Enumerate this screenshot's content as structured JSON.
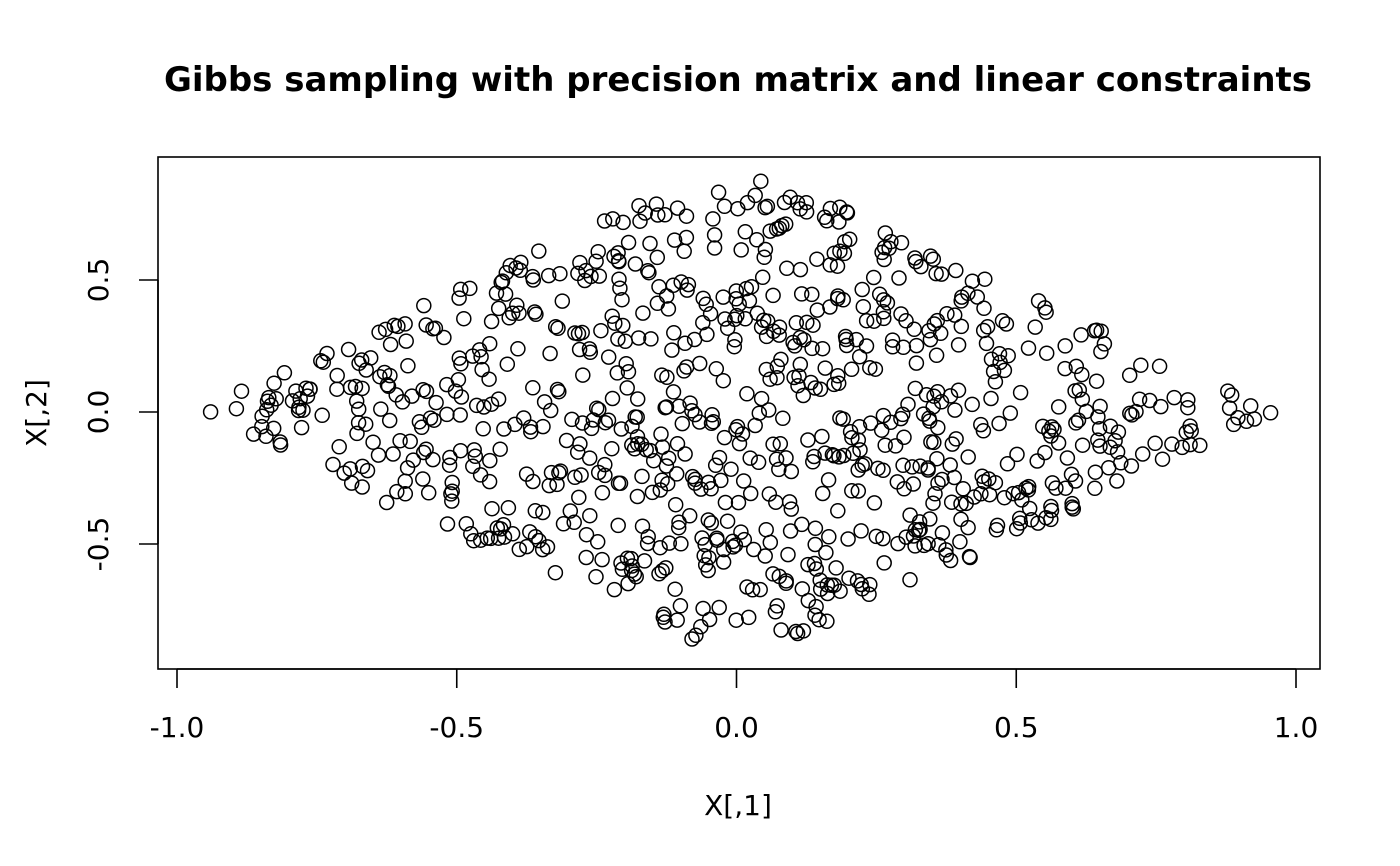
{
  "chart_data": {
    "type": "scatter",
    "title": "Gibbs sampling with precision matrix and linear constraints",
    "xlabel": "X[,1]",
    "ylabel": "X[,2]",
    "xlim": [
      -1.0,
      1.0
    ],
    "ylim": [
      -0.9,
      0.9
    ],
    "xticks": [
      -1.0,
      -0.5,
      0.0,
      0.5,
      1.0
    ],
    "xtick_labels": [
      "-1.0",
      "-0.5",
      "0.0",
      "0.5",
      "1.0"
    ],
    "yticks": [
      -0.5,
      0.0,
      0.5
    ],
    "ytick_labels": [
      "-0.5",
      "0.0",
      "0.5"
    ],
    "marker": "open-circle",
    "grid": false,
    "n_points": 900
  }
}
